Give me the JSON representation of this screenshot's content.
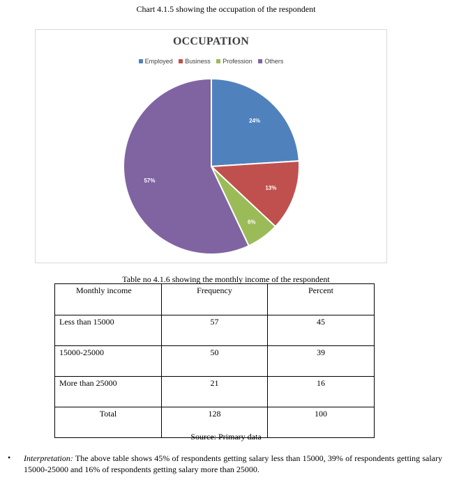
{
  "chart_caption": "Chart 4.1.5 showing the occupation of the respondent",
  "chart_data": {
    "type": "pie",
    "title": "OCCUPATION",
    "legend_position": "top",
    "categories": [
      "Employed",
      "Business",
      "Profession",
      "Others"
    ],
    "values": [
      24,
      13,
      6,
      57
    ],
    "labels": [
      "24%",
      "13%",
      "6%",
      "57%"
    ],
    "colors": [
      "#4f81bd",
      "#c0504d",
      "#9bbb59",
      "#8064a2"
    ]
  },
  "table": {
    "caption": "Table no 4.1.6 showing the monthly income of the respondent",
    "headers": [
      "Monthly income",
      "Frequency",
      "Percent"
    ],
    "rows": [
      [
        "Less than 15000",
        "57",
        "45"
      ],
      [
        "15000-25000",
        "50",
        "39"
      ],
      [
        "More than 25000",
        "21",
        "16"
      ],
      [
        "Total",
        "128",
        "100"
      ]
    ]
  },
  "source": "Source: Primary data",
  "interpretation": {
    "bullet": "•",
    "lead": "Interpretation:",
    "text": " The above table shows 45% of respondents getting salary less than 15000, 39% of respondents getting salary 15000-25000 and 16% of respondents getting salary more than 25000."
  }
}
